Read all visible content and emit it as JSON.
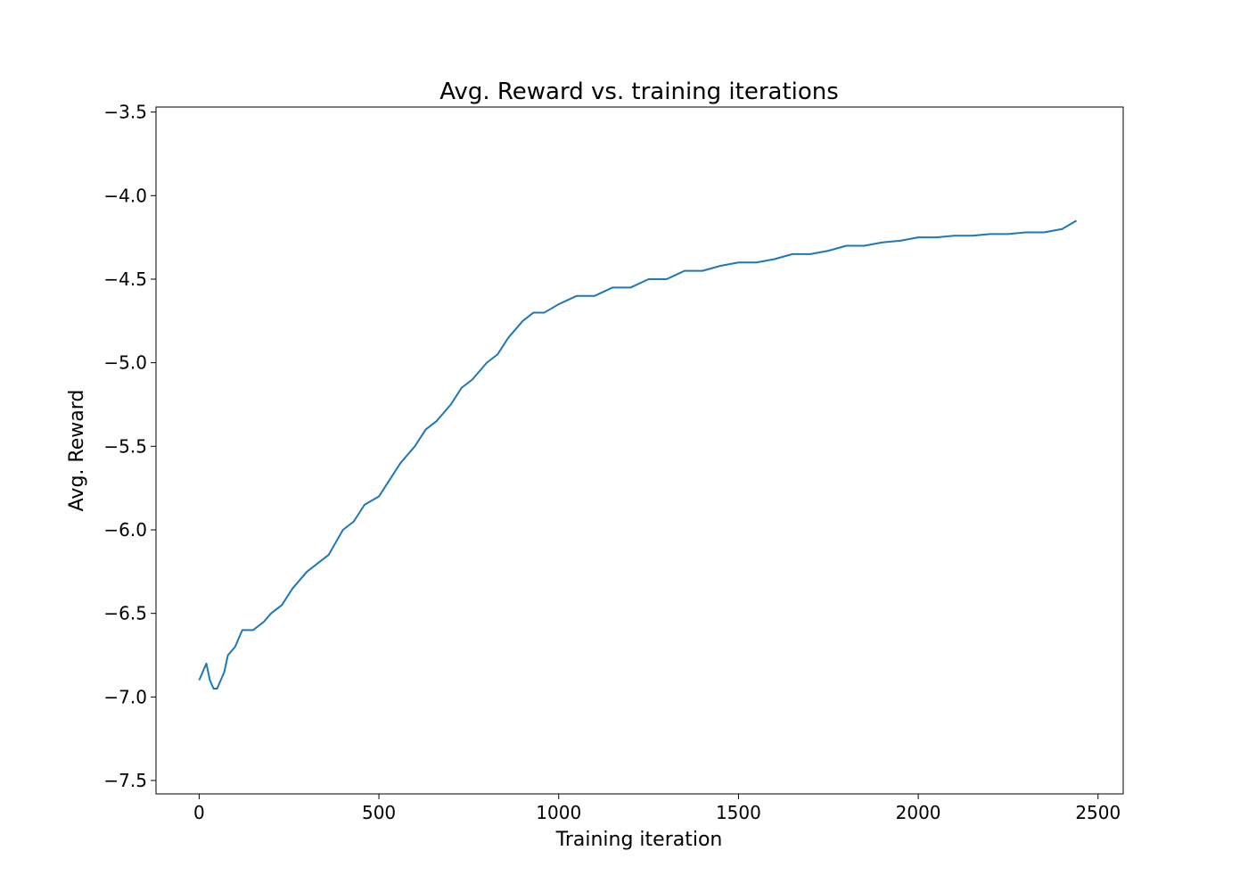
{
  "chart_data": {
    "type": "line",
    "title": "Avg. Reward vs. training iterations",
    "xlabel": "Training iteration",
    "ylabel": "Avg. Reward",
    "xlim": [
      -120,
      2570
    ],
    "ylim": [
      -7.58,
      -3.47
    ],
    "x_ticks": [
      0,
      500,
      1000,
      1500,
      2000,
      2500
    ],
    "x_tick_labels": [
      "0",
      "500",
      "1000",
      "1500",
      "2000",
      "2500"
    ],
    "y_ticks": [
      -3.5,
      -4.0,
      -4.5,
      -5.0,
      -5.5,
      -6.0,
      -6.5,
      -7.0,
      -7.5
    ],
    "y_tick_labels": [
      "−3.5",
      "−4.0",
      "−4.5",
      "−5.0",
      "−5.5",
      "−6.0",
      "−6.5",
      "−7.0",
      "−7.5"
    ],
    "grid": false,
    "line_color": "#1f77b4",
    "series": [
      {
        "x": [
          0,
          10,
          20,
          30,
          40,
          50,
          60,
          70,
          80,
          100,
          120,
          150,
          180,
          200,
          230,
          260,
          300,
          330,
          360,
          400,
          430,
          460,
          500,
          530,
          560,
          600,
          630,
          660,
          700,
          730,
          760,
          800,
          830,
          860,
          900,
          930,
          960,
          1000,
          1050,
          1100,
          1150,
          1200,
          1250,
          1300,
          1350,
          1400,
          1450,
          1500,
          1550,
          1600,
          1650,
          1700,
          1750,
          1800,
          1850,
          1900,
          1950,
          2000,
          2050,
          2100,
          2150,
          2200,
          2250,
          2300,
          2350,
          2400,
          2440
        ],
        "y": [
          -6.9,
          -6.85,
          -6.8,
          -6.9,
          -6.95,
          -6.95,
          -6.9,
          -6.85,
          -6.75,
          -6.7,
          -6.6,
          -6.6,
          -6.55,
          -6.5,
          -6.45,
          -6.35,
          -6.25,
          -6.2,
          -6.15,
          -6.0,
          -5.95,
          -5.85,
          -5.8,
          -5.7,
          -5.6,
          -5.5,
          -5.4,
          -5.35,
          -5.25,
          -5.15,
          -5.1,
          -5.0,
          -4.95,
          -4.85,
          -4.75,
          -4.7,
          -4.7,
          -4.65,
          -4.6,
          -4.6,
          -4.55,
          -4.55,
          -4.5,
          -4.5,
          -4.45,
          -4.45,
          -4.42,
          -4.4,
          -4.4,
          -4.38,
          -4.35,
          -4.35,
          -4.33,
          -4.3,
          -4.3,
          -4.28,
          -4.27,
          -4.25,
          -4.25,
          -4.24,
          -4.24,
          -4.23,
          -4.23,
          -4.22,
          -4.22,
          -4.2,
          -4.15
        ]
      }
    ]
  }
}
